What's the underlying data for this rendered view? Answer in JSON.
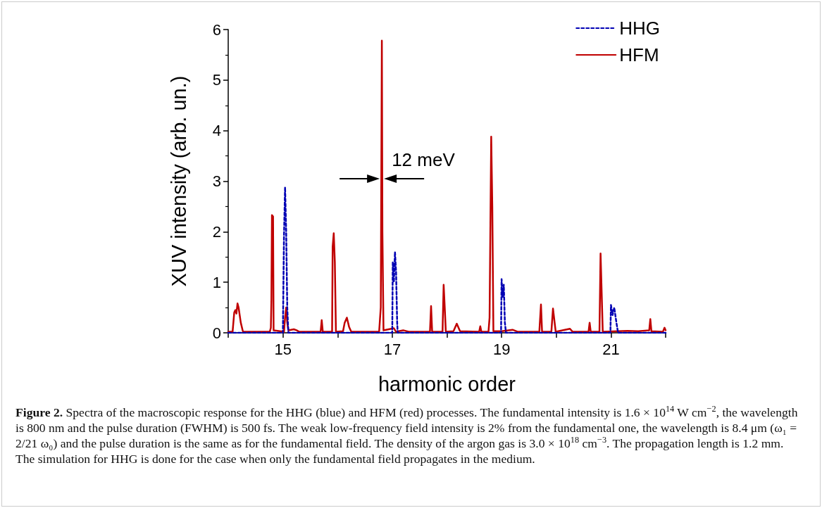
{
  "chart_data": {
    "type": "line",
    "xlabel": "harmonic order",
    "ylabel": "XUV intensity (arb. un.)",
    "xlim": [
      14,
      22
    ],
    "xticks": [
      {
        "value": 14,
        "label": null
      },
      15,
      {
        "value": 16,
        "label": null
      },
      17,
      {
        "value": 18,
        "label": null
      },
      19,
      {
        "value": 20,
        "label": null
      },
      21,
      {
        "value": 22,
        "label": null
      }
    ],
    "ylim": [
      0,
      6
    ],
    "yticks": [
      0,
      1,
      2,
      3,
      4,
      5,
      6
    ],
    "grid": false,
    "legend": "top right",
    "marker": "none",
    "series": [
      {
        "name": "HHG",
        "color": "#0000b4",
        "line_style": "dashed",
        "x": [
          14.0,
          15.0,
          15.01,
          15.02,
          15.04,
          15.06,
          15.08,
          15.1,
          17.0,
          17.01,
          17.03,
          17.05,
          17.07,
          17.09,
          17.1,
          18.99,
          19.0,
          19.02,
          19.04,
          19.06,
          19.08,
          20.99,
          21.0,
          21.03,
          21.06,
          21.1,
          21.13,
          22.0
        ],
        "values": [
          0,
          0,
          1.0,
          1.9,
          2.88,
          2.0,
          0.5,
          0,
          0,
          1.4,
          1.0,
          1.6,
          1.2,
          0.2,
          0,
          0,
          1.06,
          0.7,
          0.95,
          0.2,
          0,
          0,
          0.55,
          0.35,
          0.5,
          0.2,
          0,
          0
        ]
      },
      {
        "name": "HFM",
        "color": "#c00000",
        "line_style": "solid",
        "x": [
          14.0,
          14.08,
          14.11,
          14.13,
          14.15,
          14.17,
          14.19,
          14.23,
          14.27,
          14.76,
          14.78,
          14.79,
          14.8,
          14.82,
          14.83,
          15.02,
          15.04,
          15.06,
          15.08,
          15.1,
          15.2,
          15.25,
          15.3,
          15.69,
          15.71,
          15.73,
          15.9,
          15.91,
          15.93,
          15.95,
          15.97,
          16.1,
          16.13,
          16.17,
          16.21,
          16.25,
          16.76,
          16.79,
          16.81,
          16.82,
          16.84,
          17.03,
          17.07,
          17.2,
          17.3,
          17.69,
          17.71,
          17.73,
          17.92,
          17.94,
          17.96,
          17.98,
          18.12,
          18.18,
          18.24,
          18.59,
          18.61,
          18.63,
          18.76,
          18.78,
          18.81,
          18.83,
          18.85,
          19.0,
          19.2,
          19.3,
          19.69,
          19.72,
          19.74,
          19.91,
          19.94,
          19.97,
          19.99,
          20.25,
          20.3,
          20.59,
          20.61,
          20.63,
          20.79,
          20.81,
          20.83,
          20.85,
          21.3,
          21.5,
          21.7,
          21.72,
          21.74,
          21.95,
          21.98,
          22.0
        ],
        "values": [
          0.02,
          0.02,
          0.4,
          0.45,
          0.38,
          0.58,
          0.5,
          0.2,
          0.02,
          0.02,
          0.1,
          0.65,
          2.33,
          2.3,
          0.05,
          0.02,
          0.3,
          0.5,
          0.2,
          0.05,
          0.07,
          0.05,
          0.02,
          0.02,
          0.25,
          0.02,
          0.02,
          1.7,
          1.97,
          1.4,
          0.02,
          0.03,
          0.2,
          0.3,
          0.12,
          0.02,
          0.02,
          0.5,
          5.78,
          2.0,
          0.05,
          0.09,
          0.02,
          0.05,
          0.02,
          0.02,
          0.53,
          0.02,
          0.02,
          0.95,
          0.5,
          0.02,
          0.03,
          0.18,
          0.03,
          0.02,
          0.13,
          0.02,
          0.02,
          0.3,
          3.88,
          2.5,
          0.03,
          0.03,
          0.06,
          0.02,
          0.02,
          0.56,
          0.02,
          0.02,
          0.48,
          0.2,
          0.02,
          0.08,
          0.02,
          0.02,
          0.2,
          0.02,
          0.02,
          1.57,
          0.8,
          0.02,
          0.04,
          0.03,
          0.05,
          0.27,
          0.03,
          0.02,
          0.1,
          0.05
        ]
      }
    ],
    "annotations": [
      {
        "text": "12 meV",
        "x": 16.81,
        "y": 3.05
      },
      "Figure 2.",
      "Spectra of the macroscopic response for the HHG (blue) and HFM (red) processes. The fundamental intensity is 1.6 × 10$^{14}$ W cm$^{−2}$, the wavelength is 800 nm and the pulse duration (FWHM) is 500 fs. The weak low-frequency field intensity is 2% from the fundamental one, the wavelength is 8.4 μm (ω₁ = 2/21 ω₀) and the pulse duration is the same as for the fundamental field. The density of the argon gas is 3.0 × 10$^{18}$ cm$^{−3}$. The propagation length is 1.2 mm. The simulation for HHG is done for the case when only the fundamental field propagates in the medium."
    ]
  }
}
